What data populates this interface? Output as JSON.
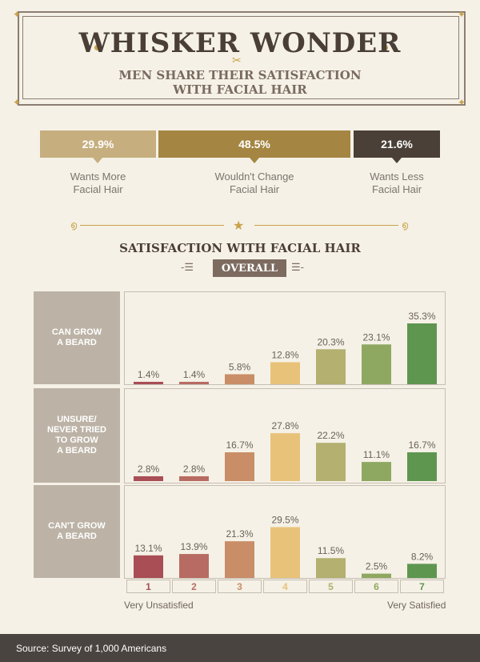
{
  "header": {
    "title": "WHISKER WONDER",
    "subtitle_line1": "MEN SHARE THEIR SATISFACTION",
    "subtitle_line2": "WITH FACIAL HAIR"
  },
  "preferences": [
    {
      "value": "29.9%",
      "label_line1": "Wants More",
      "label_line2": "Facial Hair",
      "color": "#c6ae7e"
    },
    {
      "value": "48.5%",
      "label_line1": "Wouldn't Change",
      "label_line2": "Facial Hair",
      "color": "#a48542"
    },
    {
      "value": "21.6%",
      "label_line1": "Wants Less",
      "label_line2": "Facial Hair",
      "color": "#4a4038"
    }
  ],
  "section": {
    "title": "SATISFACTION WITH FACIAL HAIR",
    "ribbon": "OVERALL"
  },
  "row_labels": [
    [
      "CAN GROW",
      "A BEARD"
    ],
    [
      "UNSURE/",
      "NEVER TRIED",
      "TO GROW",
      "A BEARD"
    ],
    [
      "CAN'T GROW",
      "A BEARD"
    ]
  ],
  "scale": {
    "low": "Very Unsatisfied",
    "high": "Very Satisfied"
  },
  "footer": {
    "source": "Source: Survey of 1,000 Americans"
  },
  "colors": [
    "#a94e55",
    "#b86b62",
    "#c98d68",
    "#e9c27a",
    "#b3b070",
    "#8ea861",
    "#5e9650"
  ],
  "chart_data": {
    "type": "bar",
    "categories": [
      "1",
      "2",
      "3",
      "4",
      "5",
      "6",
      "7"
    ],
    "series": [
      {
        "name": "CAN GROW A BEARD",
        "values": [
          1.4,
          1.4,
          5.8,
          12.8,
          20.3,
          23.1,
          35.3
        ]
      },
      {
        "name": "UNSURE/NEVER TRIED TO GROW A BEARD",
        "values": [
          2.8,
          2.8,
          16.7,
          27.8,
          22.2,
          11.1,
          16.7
        ]
      },
      {
        "name": "CAN'T GROW A BEARD",
        "values": [
          13.1,
          13.9,
          21.3,
          29.5,
          11.5,
          2.5,
          8.2
        ]
      }
    ],
    "data_labels": [
      [
        "1.4%",
        "1.4%",
        "5.8%",
        "12.8%",
        "20.3%",
        "23.1%",
        "35.3%"
      ],
      [
        "2.8%",
        "2.8%",
        "16.7%",
        "27.8%",
        "22.2%",
        "11.1%",
        "16.7%"
      ],
      [
        "13.1%",
        "13.9%",
        "21.3%",
        "29.5%",
        "11.5%",
        "2.5%",
        "8.2%"
      ]
    ],
    "title": "SATISFACTION WITH FACIAL HAIR",
    "xlabel": "",
    "ylabel": "",
    "ylim": [
      0,
      35.3
    ],
    "grid": false
  }
}
